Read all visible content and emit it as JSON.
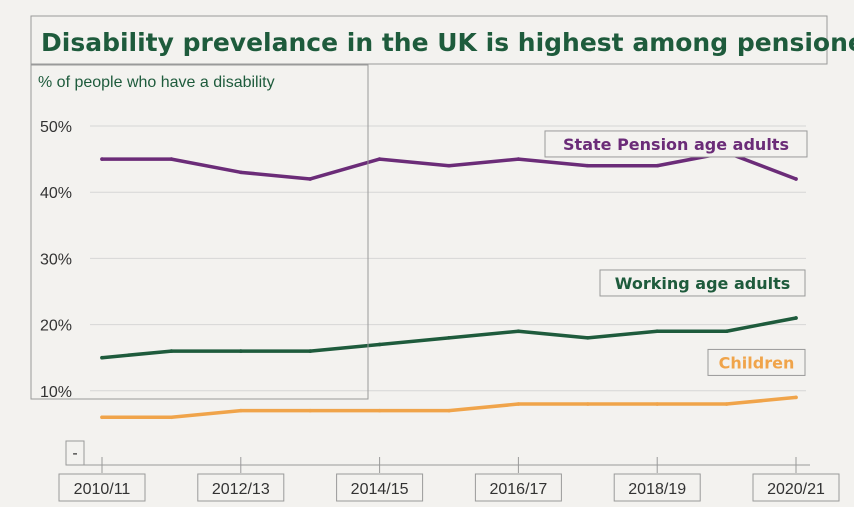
{
  "chart_data": {
    "type": "line",
    "title": "Disability prevelance in the UK is highest among pensioners",
    "ylabel": "% of people who have a disability",
    "xlabel": "",
    "ylim": [
      0,
      50
    ],
    "y_ticks": [
      "-",
      "10%",
      "20%",
      "30%",
      "40%",
      "50%"
    ],
    "y_tick_values": [
      0,
      10,
      20,
      30,
      40,
      50
    ],
    "x_ticks": [
      "2010/11",
      "2012/13",
      "2014/15",
      "2016/17",
      "2018/19",
      "2020/21"
    ],
    "x_tick_indices": [
      0,
      2,
      4,
      6,
      8,
      10
    ],
    "categories": [
      "2010/11",
      "2011/12",
      "2012/13",
      "2013/14",
      "2014/15",
      "2015/16",
      "2016/17",
      "2017/18",
      "2018/19",
      "2019/20",
      "2020/21"
    ],
    "grid": "horizontal",
    "series": [
      {
        "name": "State Pension age adults",
        "color": "#6b2c78",
        "values": [
          45,
          45,
          43,
          42,
          45,
          44,
          45,
          44,
          44,
          46,
          42
        ]
      },
      {
        "name": "Working age adults",
        "color": "#1e5b3c",
        "values": [
          15,
          16,
          16,
          16,
          17,
          18,
          19,
          18,
          19,
          19,
          21
        ]
      },
      {
        "name": "Children",
        "color": "#f0a44a",
        "values": [
          6,
          6,
          7,
          7,
          7,
          7,
          8,
          8,
          8,
          8,
          9
        ]
      }
    ],
    "colors": {
      "title": "#1e5b3c",
      "grid": "#d6d6d6",
      "axis_text": "#333333"
    }
  }
}
